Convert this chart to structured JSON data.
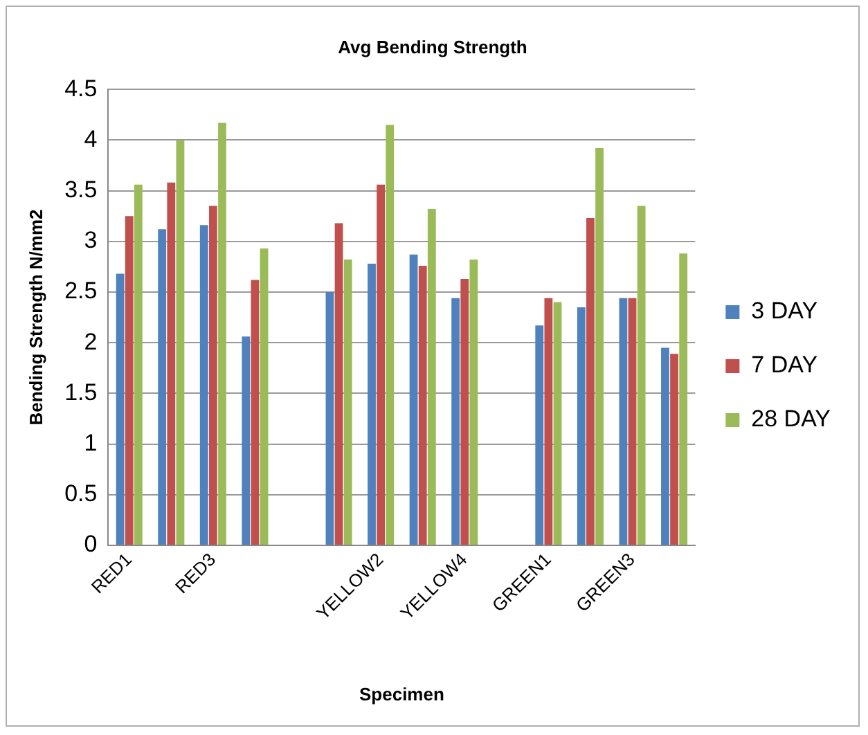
{
  "chart_data": {
    "type": "bar",
    "title": "Avg Bending Strength",
    "xlabel": "Specimen",
    "ylabel": "Bending Strength N/mm2",
    "categories": [
      "RED1",
      null,
      "RED3",
      null,
      null,
      null,
      "YELLOW2",
      null,
      "YELLOW4",
      null,
      "GREEN1",
      null,
      "GREEN3",
      null
    ],
    "series": [
      {
        "name": "3 DAY",
        "color": "#4f81bd",
        "values": [
          2.68,
          3.12,
          3.16,
          2.06,
          null,
          2.5,
          2.78,
          2.87,
          2.44,
          null,
          2.17,
          2.35,
          2.44,
          1.95
        ]
      },
      {
        "name": "7 DAY",
        "color": "#c0504d",
        "values": [
          3.25,
          3.58,
          3.35,
          2.62,
          null,
          3.18,
          3.56,
          2.76,
          2.63,
          null,
          2.44,
          3.23,
          2.44,
          1.89
        ]
      },
      {
        "name": "28 DAY",
        "color": "#9bbb59",
        "values": [
          3.56,
          4.0,
          4.17,
          2.93,
          null,
          2.82,
          4.15,
          3.32,
          2.82,
          null,
          2.4,
          3.92,
          3.35,
          2.88
        ]
      }
    ],
    "ylim": [
      0,
      4.5
    ],
    "yticks": [
      0,
      0.5,
      1,
      1.5,
      2,
      2.5,
      3,
      3.5,
      4,
      4.5
    ],
    "grid": "y",
    "legend": "right"
  }
}
